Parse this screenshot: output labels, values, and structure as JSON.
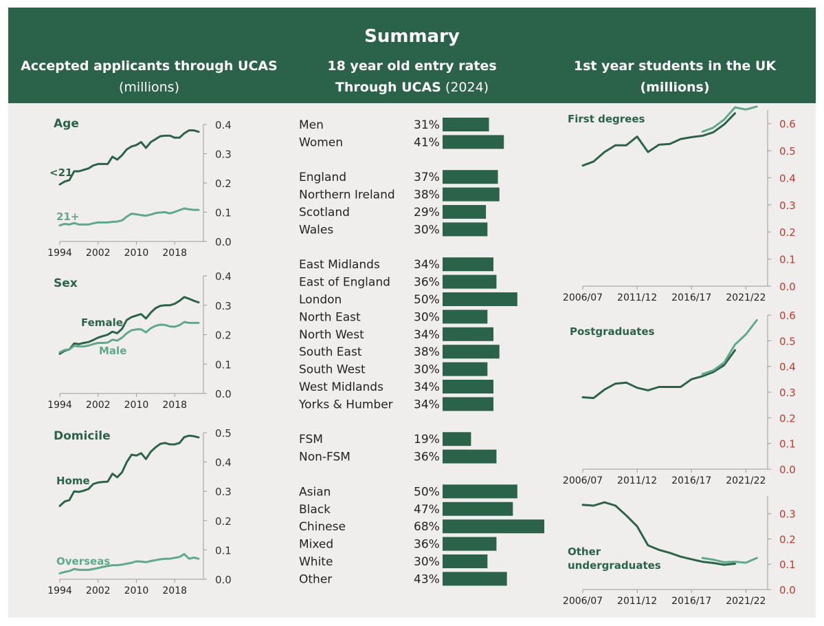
{
  "header": {
    "title": "Summary",
    "col1_line1": "Accepted applicants through UCAS",
    "col1_line2": "(millions)",
    "col2_line1": "18 year old entry rates",
    "col2_line2_bold": "Through UCAS",
    "col2_line2_normal": "(2024)",
    "col3_line1": "1st year students in the UK",
    "col3_line2": "(millions)"
  },
  "colors": {
    "dark_green": "#2b634a",
    "light_green": "#5fa88b",
    "red_tick": "#c0392b",
    "panel_bg": "#efeeed"
  },
  "chart_data": [
    {
      "type": "line",
      "title": "Age",
      "ylim": [
        0,
        0.4
      ],
      "yticks": [
        "0.0",
        "0.1",
        "0.2",
        "0.3",
        "0.4"
      ],
      "xlim": [
        1994,
        2024
      ],
      "xticks": [
        "1994",
        "2002",
        "2010",
        "2018"
      ],
      "series": [
        {
          "name": "<21",
          "color": "dark",
          "x": [
            1994,
            1995,
            1996,
            1997,
            1998,
            1999,
            2000,
            2001,
            2002,
            2003,
            2004,
            2005,
            2006,
            2007,
            2008,
            2009,
            2010,
            2011,
            2012,
            2013,
            2014,
            2015,
            2016,
            2017,
            2018,
            2019,
            2020,
            2021,
            2022,
            2023
          ],
          "values": [
            0.195,
            0.205,
            0.21,
            0.24,
            0.24,
            0.245,
            0.25,
            0.26,
            0.265,
            0.265,
            0.265,
            0.29,
            0.28,
            0.295,
            0.315,
            0.325,
            0.33,
            0.34,
            0.32,
            0.34,
            0.35,
            0.36,
            0.362,
            0.362,
            0.355,
            0.355,
            0.37,
            0.38,
            0.38,
            0.375
          ]
        },
        {
          "name": "21+",
          "color": "light",
          "x": [
            1994,
            1995,
            1996,
            1997,
            1998,
            1999,
            2000,
            2001,
            2002,
            2003,
            2004,
            2005,
            2006,
            2007,
            2008,
            2009,
            2010,
            2011,
            2012,
            2013,
            2014,
            2015,
            2016,
            2017,
            2018,
            2019,
            2020,
            2021,
            2022,
            2023
          ],
          "values": [
            0.055,
            0.06,
            0.058,
            0.063,
            0.058,
            0.058,
            0.058,
            0.062,
            0.065,
            0.065,
            0.065,
            0.067,
            0.068,
            0.072,
            0.085,
            0.095,
            0.093,
            0.09,
            0.088,
            0.092,
            0.097,
            0.099,
            0.1,
            0.096,
            0.101,
            0.107,
            0.113,
            0.11,
            0.108,
            0.108
          ]
        }
      ]
    },
    {
      "type": "line",
      "title": "Sex",
      "ylim": [
        0,
        0.4
      ],
      "yticks": [
        "0.0",
        "0.1",
        "0.2",
        "0.3",
        "0.4"
      ],
      "xlim": [
        1994,
        2024
      ],
      "xticks": [
        "1994",
        "2002",
        "2010",
        "2018"
      ],
      "series": [
        {
          "name": "Female",
          "color": "dark",
          "x": [
            1994,
            1995,
            1996,
            1997,
            1998,
            1999,
            2000,
            2001,
            2002,
            2003,
            2004,
            2005,
            2006,
            2007,
            2008,
            2009,
            2010,
            2011,
            2012,
            2013,
            2014,
            2015,
            2016,
            2017,
            2018,
            2019,
            2020,
            2021,
            2022,
            2023
          ],
          "values": [
            0.135,
            0.145,
            0.15,
            0.17,
            0.168,
            0.172,
            0.175,
            0.182,
            0.19,
            0.195,
            0.2,
            0.21,
            0.205,
            0.22,
            0.25,
            0.26,
            0.265,
            0.27,
            0.255,
            0.275,
            0.29,
            0.298,
            0.3,
            0.3,
            0.305,
            0.315,
            0.328,
            0.322,
            0.315,
            0.31
          ]
        },
        {
          "name": "Male",
          "color": "light",
          "x": [
            1994,
            1995,
            1996,
            1997,
            1998,
            1999,
            2000,
            2001,
            2002,
            2003,
            2004,
            2005,
            2006,
            2007,
            2008,
            2009,
            2010,
            2011,
            2012,
            2013,
            2014,
            2015,
            2016,
            2017,
            2018,
            2019,
            2020,
            2021,
            2022,
            2023
          ],
          "values": [
            0.14,
            0.148,
            0.15,
            0.162,
            0.16,
            0.16,
            0.163,
            0.168,
            0.172,
            0.172,
            0.173,
            0.183,
            0.18,
            0.19,
            0.205,
            0.215,
            0.218,
            0.218,
            0.208,
            0.222,
            0.23,
            0.234,
            0.233,
            0.228,
            0.227,
            0.232,
            0.243,
            0.24,
            0.24,
            0.24
          ]
        }
      ]
    },
    {
      "type": "line",
      "title": "Domicile",
      "ylim": [
        0,
        0.5
      ],
      "yticks": [
        "0.0",
        "0.1",
        "0.2",
        "0.3",
        "0.4",
        "0.5"
      ],
      "xlim": [
        1994,
        2024
      ],
      "xticks": [
        "1994",
        "2002",
        "2010",
        "2018"
      ],
      "series": [
        {
          "name": "Home",
          "color": "dark",
          "x": [
            1994,
            1995,
            1996,
            1997,
            1998,
            1999,
            2000,
            2001,
            2002,
            2003,
            2004,
            2005,
            2006,
            2007,
            2008,
            2009,
            2010,
            2011,
            2012,
            2013,
            2014,
            2015,
            2016,
            2017,
            2018,
            2019,
            2020,
            2021,
            2022,
            2023
          ],
          "values": [
            0.25,
            0.265,
            0.27,
            0.3,
            0.298,
            0.302,
            0.308,
            0.325,
            0.33,
            0.332,
            0.333,
            0.36,
            0.348,
            0.365,
            0.4,
            0.425,
            0.422,
            0.43,
            0.41,
            0.435,
            0.45,
            0.462,
            0.465,
            0.46,
            0.46,
            0.465,
            0.485,
            0.49,
            0.488,
            0.484
          ]
        },
        {
          "name": "Overseas",
          "color": "light",
          "x": [
            1994,
            1995,
            1996,
            1997,
            1998,
            1999,
            2000,
            2001,
            2002,
            2003,
            2004,
            2005,
            2006,
            2007,
            2008,
            2009,
            2010,
            2011,
            2012,
            2013,
            2014,
            2015,
            2016,
            2017,
            2018,
            2019,
            2020,
            2021,
            2022,
            2023
          ],
          "values": [
            0.02,
            0.025,
            0.028,
            0.035,
            0.032,
            0.032,
            0.032,
            0.035,
            0.038,
            0.042,
            0.045,
            0.048,
            0.048,
            0.05,
            0.053,
            0.056,
            0.061,
            0.06,
            0.058,
            0.062,
            0.065,
            0.068,
            0.07,
            0.07,
            0.073,
            0.076,
            0.086,
            0.07,
            0.074,
            0.07
          ]
        }
      ]
    },
    {
      "type": "bar",
      "title": "18 year old entry rates Through UCAS (2024)",
      "max_value": 68,
      "groups": [
        {
          "items": [
            {
              "label": "Men",
              "value": 31,
              "value_label": "31%"
            },
            {
              "label": "Women",
              "value": 41,
              "value_label": "41%"
            }
          ]
        },
        {
          "items": [
            {
              "label": "England",
              "value": 37,
              "value_label": "37%"
            },
            {
              "label": "Northern Ireland",
              "value": 38,
              "value_label": "38%"
            },
            {
              "label": "Scotland",
              "value": 29,
              "value_label": "29%"
            },
            {
              "label": "Wales",
              "value": 30,
              "value_label": "30%"
            }
          ]
        },
        {
          "items": [
            {
              "label": "East Midlands",
              "value": 34,
              "value_label": "34%"
            },
            {
              "label": "East of England",
              "value": 36,
              "value_label": "36%"
            },
            {
              "label": "London",
              "value": 50,
              "value_label": "50%"
            },
            {
              "label": "North East",
              "value": 30,
              "value_label": "30%"
            },
            {
              "label": "North West",
              "value": 34,
              "value_label": "34%"
            },
            {
              "label": "South East",
              "value": 38,
              "value_label": "38%"
            },
            {
              "label": "South West",
              "value": 30,
              "value_label": "30%"
            },
            {
              "label": "West Midlands",
              "value": 34,
              "value_label": "34%"
            },
            {
              "label": "Yorks & Humber",
              "value": 34,
              "value_label": "34%"
            }
          ]
        },
        {
          "items": [
            {
              "label": "FSM",
              "value": 19,
              "value_label": "19%"
            },
            {
              "label": "Non-FSM",
              "value": 36,
              "value_label": "36%"
            }
          ]
        },
        {
          "items": [
            {
              "label": "Asian",
              "value": 50,
              "value_label": "50%"
            },
            {
              "label": "Black",
              "value": 47,
              "value_label": "47%"
            },
            {
              "label": "Chinese",
              "value": 68,
              "value_label": "68%"
            },
            {
              "label": "Mixed",
              "value": 36,
              "value_label": "36%"
            },
            {
              "label": "White",
              "value": 30,
              "value_label": "30%"
            },
            {
              "label": "Other",
              "value": 43,
              "value_label": "43%"
            }
          ]
        }
      ]
    },
    {
      "type": "line",
      "title": "First degrees",
      "ylim": [
        0,
        0.65
      ],
      "yticks": [
        "0.0",
        "0.1",
        "0.2",
        "0.3",
        "0.4",
        "0.5",
        "0.6"
      ],
      "xlim": [
        2006,
        2023
      ],
      "xticks": [
        "2006/07",
        "2011/12",
        "2016/17",
        "2021/22"
      ],
      "series": [
        {
          "name": "First degrees (earlier series)",
          "color": "dark",
          "x": [
            2006,
            2007,
            2008,
            2009,
            2010,
            2011,
            2012,
            2013,
            2014,
            2015,
            2016,
            2017,
            2018,
            2019,
            2020
          ],
          "values": [
            0.445,
            0.46,
            0.495,
            0.52,
            0.52,
            0.552,
            0.495,
            0.522,
            0.525,
            0.543,
            0.55,
            0.555,
            0.568,
            0.597,
            0.638
          ]
        },
        {
          "name": "First degrees (new series)",
          "color": "light",
          "x": [
            2017,
            2018,
            2019,
            2020,
            2021,
            2022
          ],
          "values": [
            0.57,
            0.585,
            0.615,
            0.66,
            0.652,
            0.663
          ]
        }
      ]
    },
    {
      "type": "line",
      "title": "Postgraduates",
      "ylim": [
        0,
        0.6
      ],
      "yticks": [
        "0.0",
        "0.1",
        "0.2",
        "0.3",
        "0.4",
        "0.5",
        "0.6"
      ],
      "xlim": [
        2006,
        2023
      ],
      "xticks": [
        "2006/07",
        "2011/12",
        "2016/17",
        "2021/22"
      ],
      "series": [
        {
          "name": "Postgraduates (earlier series)",
          "color": "dark",
          "x": [
            2006,
            2007,
            2008,
            2009,
            2010,
            2011,
            2012,
            2013,
            2014,
            2015,
            2016,
            2017,
            2018,
            2019,
            2020
          ],
          "values": [
            0.28,
            0.277,
            0.31,
            0.333,
            0.337,
            0.317,
            0.307,
            0.32,
            0.32,
            0.32,
            0.35,
            0.362,
            0.378,
            0.405,
            0.463
          ]
        },
        {
          "name": "Postgraduates (new series)",
          "color": "light",
          "x": [
            2017,
            2018,
            2019,
            2020,
            2021,
            2022
          ],
          "values": [
            0.37,
            0.385,
            0.415,
            0.485,
            0.525,
            0.58
          ]
        }
      ]
    },
    {
      "type": "line",
      "title": "Other undergraduates",
      "title_lines": [
        "Other",
        "undergraduates"
      ],
      "ylim": [
        0,
        0.37
      ],
      "yticks": [
        "0.0",
        "0.1",
        "0.2",
        "0.3"
      ],
      "xlim": [
        2006,
        2023
      ],
      "xticks": [
        "2006/07",
        "2011/12",
        "2016/17",
        "2021/22"
      ],
      "series": [
        {
          "name": "Other undergraduates (earlier series)",
          "color": "dark",
          "x": [
            2006,
            2007,
            2008,
            2009,
            2010,
            2011,
            2012,
            2013,
            2014,
            2015,
            2016,
            2017,
            2018,
            2019,
            2020
          ],
          "values": [
            0.335,
            0.332,
            0.345,
            0.332,
            0.293,
            0.25,
            0.175,
            0.157,
            0.145,
            0.13,
            0.12,
            0.11,
            0.105,
            0.098,
            0.102
          ]
        },
        {
          "name": "Other undergraduates (new series)",
          "color": "light",
          "x": [
            2017,
            2018,
            2019,
            2020,
            2021,
            2022
          ],
          "values": [
            0.125,
            0.118,
            0.108,
            0.11,
            0.106,
            0.125
          ]
        }
      ]
    }
  ]
}
